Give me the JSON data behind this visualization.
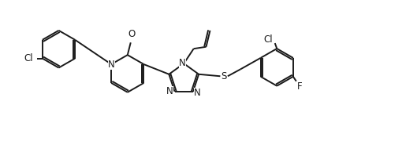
{
  "bg": "#ffffff",
  "lc": "#1a1a1a",
  "lw": 1.4,
  "fs": 8.5,
  "xlim": [
    0,
    10.5
  ],
  "ylim": [
    0,
    3.6
  ]
}
